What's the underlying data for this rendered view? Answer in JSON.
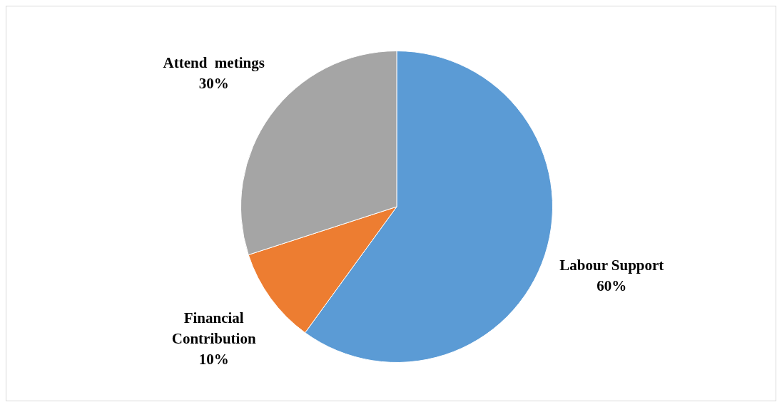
{
  "chart_data": {
    "type": "pie",
    "categories": [
      "Labour Support",
      "Financial Contribution",
      "Attend  metings"
    ],
    "values": [
      60,
      10,
      30
    ],
    "colors": [
      "#5b9bd5",
      "#ed7d31",
      "#a5a5a5"
    ],
    "value_labels": [
      "60%",
      "10%",
      "30%"
    ],
    "legend": false
  }
}
